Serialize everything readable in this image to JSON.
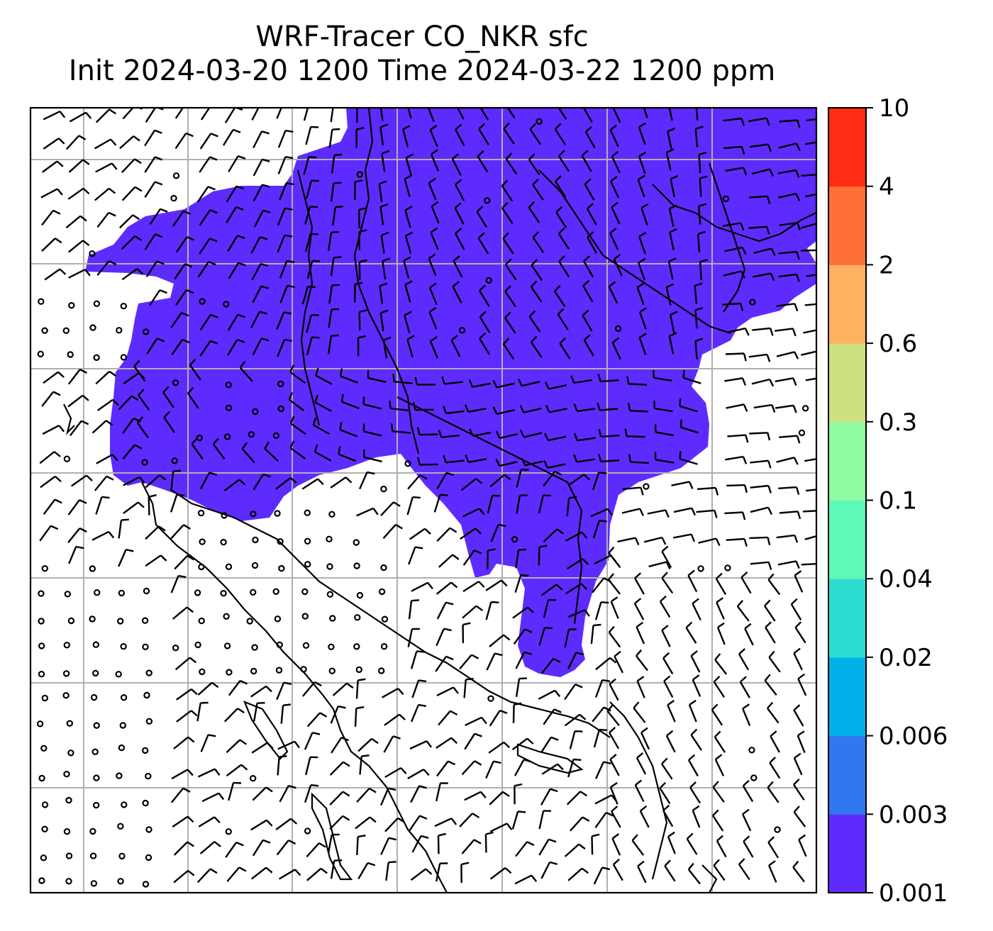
{
  "title": {
    "line1": "WRF-Tracer CO_NKR sfc",
    "line2": "Init 2024-03-20 1200 Time 2024-03-22 1200 ppm"
  },
  "colorbar": {
    "levels": [
      "0.001",
      "0.003",
      "0.006",
      "0.02",
      "0.04",
      "0.1",
      "0.3",
      "0.6",
      "2",
      "4",
      "10"
    ],
    "labels": [
      "0.001",
      "0.003",
      "0.006",
      "0.02",
      "0.04",
      "0.1",
      "0.3",
      "0.6",
      "2",
      "4",
      "10"
    ],
    "colors": [
      "#5e2bff",
      "#3177f0",
      "#02b1ea",
      "#2ddcd2",
      "#5ef8b8",
      "#8ffca0",
      "#cde081",
      "#ffb060",
      "#ff7038",
      "#ff2c14"
    ]
  },
  "map": {
    "filled_color": "#5e2bff",
    "gridline_color": "#b0b0b0",
    "coastline_color": "#000000"
  }
}
